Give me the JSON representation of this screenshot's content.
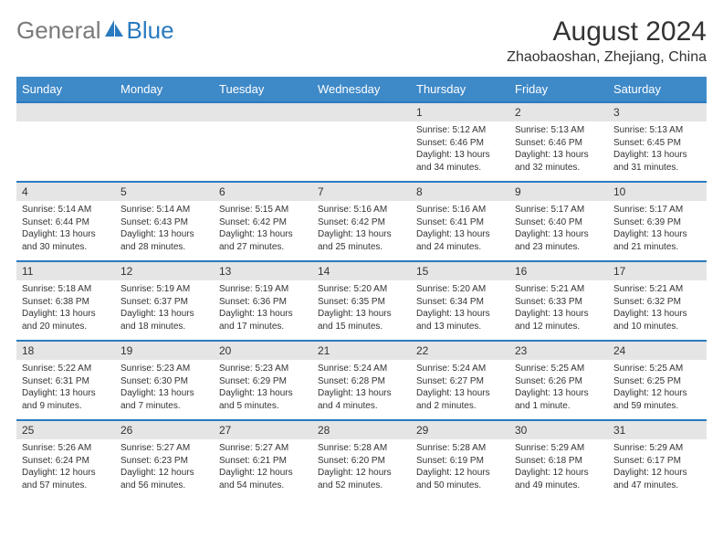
{
  "logo": {
    "part1": "General",
    "part2": "Blue"
  },
  "title": "August 2024",
  "location": "Zhaobaoshan, Zhejiang, China",
  "header_bg": "#3e89c8",
  "header_border": "#2a7abf",
  "daynum_bg": "#e5e5e5",
  "text_color": "#333333",
  "logo_gray": "#7a7a7a",
  "logo_blue": "#2a7abf",
  "day_names": [
    "Sunday",
    "Monday",
    "Tuesday",
    "Wednesday",
    "Thursday",
    "Friday",
    "Saturday"
  ],
  "weeks": [
    {
      "nums": [
        "",
        "",
        "",
        "",
        "1",
        "2",
        "3"
      ],
      "info": [
        null,
        null,
        null,
        null,
        {
          "sunrise": "Sunrise: 5:12 AM",
          "sunset": "Sunset: 6:46 PM",
          "daylight1": "Daylight: 13 hours",
          "daylight2": "and 34 minutes."
        },
        {
          "sunrise": "Sunrise: 5:13 AM",
          "sunset": "Sunset: 6:46 PM",
          "daylight1": "Daylight: 13 hours",
          "daylight2": "and 32 minutes."
        },
        {
          "sunrise": "Sunrise: 5:13 AM",
          "sunset": "Sunset: 6:45 PM",
          "daylight1": "Daylight: 13 hours",
          "daylight2": "and 31 minutes."
        }
      ]
    },
    {
      "nums": [
        "4",
        "5",
        "6",
        "7",
        "8",
        "9",
        "10"
      ],
      "info": [
        {
          "sunrise": "Sunrise: 5:14 AM",
          "sunset": "Sunset: 6:44 PM",
          "daylight1": "Daylight: 13 hours",
          "daylight2": "and 30 minutes."
        },
        {
          "sunrise": "Sunrise: 5:14 AM",
          "sunset": "Sunset: 6:43 PM",
          "daylight1": "Daylight: 13 hours",
          "daylight2": "and 28 minutes."
        },
        {
          "sunrise": "Sunrise: 5:15 AM",
          "sunset": "Sunset: 6:42 PM",
          "daylight1": "Daylight: 13 hours",
          "daylight2": "and 27 minutes."
        },
        {
          "sunrise": "Sunrise: 5:16 AM",
          "sunset": "Sunset: 6:42 PM",
          "daylight1": "Daylight: 13 hours",
          "daylight2": "and 25 minutes."
        },
        {
          "sunrise": "Sunrise: 5:16 AM",
          "sunset": "Sunset: 6:41 PM",
          "daylight1": "Daylight: 13 hours",
          "daylight2": "and 24 minutes."
        },
        {
          "sunrise": "Sunrise: 5:17 AM",
          "sunset": "Sunset: 6:40 PM",
          "daylight1": "Daylight: 13 hours",
          "daylight2": "and 23 minutes."
        },
        {
          "sunrise": "Sunrise: 5:17 AM",
          "sunset": "Sunset: 6:39 PM",
          "daylight1": "Daylight: 13 hours",
          "daylight2": "and 21 minutes."
        }
      ]
    },
    {
      "nums": [
        "11",
        "12",
        "13",
        "14",
        "15",
        "16",
        "17"
      ],
      "info": [
        {
          "sunrise": "Sunrise: 5:18 AM",
          "sunset": "Sunset: 6:38 PM",
          "daylight1": "Daylight: 13 hours",
          "daylight2": "and 20 minutes."
        },
        {
          "sunrise": "Sunrise: 5:19 AM",
          "sunset": "Sunset: 6:37 PM",
          "daylight1": "Daylight: 13 hours",
          "daylight2": "and 18 minutes."
        },
        {
          "sunrise": "Sunrise: 5:19 AM",
          "sunset": "Sunset: 6:36 PM",
          "daylight1": "Daylight: 13 hours",
          "daylight2": "and 17 minutes."
        },
        {
          "sunrise": "Sunrise: 5:20 AM",
          "sunset": "Sunset: 6:35 PM",
          "daylight1": "Daylight: 13 hours",
          "daylight2": "and 15 minutes."
        },
        {
          "sunrise": "Sunrise: 5:20 AM",
          "sunset": "Sunset: 6:34 PM",
          "daylight1": "Daylight: 13 hours",
          "daylight2": "and 13 minutes."
        },
        {
          "sunrise": "Sunrise: 5:21 AM",
          "sunset": "Sunset: 6:33 PM",
          "daylight1": "Daylight: 13 hours",
          "daylight2": "and 12 minutes."
        },
        {
          "sunrise": "Sunrise: 5:21 AM",
          "sunset": "Sunset: 6:32 PM",
          "daylight1": "Daylight: 13 hours",
          "daylight2": "and 10 minutes."
        }
      ]
    },
    {
      "nums": [
        "18",
        "19",
        "20",
        "21",
        "22",
        "23",
        "24"
      ],
      "info": [
        {
          "sunrise": "Sunrise: 5:22 AM",
          "sunset": "Sunset: 6:31 PM",
          "daylight1": "Daylight: 13 hours",
          "daylight2": "and 9 minutes."
        },
        {
          "sunrise": "Sunrise: 5:23 AM",
          "sunset": "Sunset: 6:30 PM",
          "daylight1": "Daylight: 13 hours",
          "daylight2": "and 7 minutes."
        },
        {
          "sunrise": "Sunrise: 5:23 AM",
          "sunset": "Sunset: 6:29 PM",
          "daylight1": "Daylight: 13 hours",
          "daylight2": "and 5 minutes."
        },
        {
          "sunrise": "Sunrise: 5:24 AM",
          "sunset": "Sunset: 6:28 PM",
          "daylight1": "Daylight: 13 hours",
          "daylight2": "and 4 minutes."
        },
        {
          "sunrise": "Sunrise: 5:24 AM",
          "sunset": "Sunset: 6:27 PM",
          "daylight1": "Daylight: 13 hours",
          "daylight2": "and 2 minutes."
        },
        {
          "sunrise": "Sunrise: 5:25 AM",
          "sunset": "Sunset: 6:26 PM",
          "daylight1": "Daylight: 13 hours",
          "daylight2": "and 1 minute."
        },
        {
          "sunrise": "Sunrise: 5:25 AM",
          "sunset": "Sunset: 6:25 PM",
          "daylight1": "Daylight: 12 hours",
          "daylight2": "and 59 minutes."
        }
      ]
    },
    {
      "nums": [
        "25",
        "26",
        "27",
        "28",
        "29",
        "30",
        "31"
      ],
      "info": [
        {
          "sunrise": "Sunrise: 5:26 AM",
          "sunset": "Sunset: 6:24 PM",
          "daylight1": "Daylight: 12 hours",
          "daylight2": "and 57 minutes."
        },
        {
          "sunrise": "Sunrise: 5:27 AM",
          "sunset": "Sunset: 6:23 PM",
          "daylight1": "Daylight: 12 hours",
          "daylight2": "and 56 minutes."
        },
        {
          "sunrise": "Sunrise: 5:27 AM",
          "sunset": "Sunset: 6:21 PM",
          "daylight1": "Daylight: 12 hours",
          "daylight2": "and 54 minutes."
        },
        {
          "sunrise": "Sunrise: 5:28 AM",
          "sunset": "Sunset: 6:20 PM",
          "daylight1": "Daylight: 12 hours",
          "daylight2": "and 52 minutes."
        },
        {
          "sunrise": "Sunrise: 5:28 AM",
          "sunset": "Sunset: 6:19 PM",
          "daylight1": "Daylight: 12 hours",
          "daylight2": "and 50 minutes."
        },
        {
          "sunrise": "Sunrise: 5:29 AM",
          "sunset": "Sunset: 6:18 PM",
          "daylight1": "Daylight: 12 hours",
          "daylight2": "and 49 minutes."
        },
        {
          "sunrise": "Sunrise: 5:29 AM",
          "sunset": "Sunset: 6:17 PM",
          "daylight1": "Daylight: 12 hours",
          "daylight2": "and 47 minutes."
        }
      ]
    }
  ]
}
